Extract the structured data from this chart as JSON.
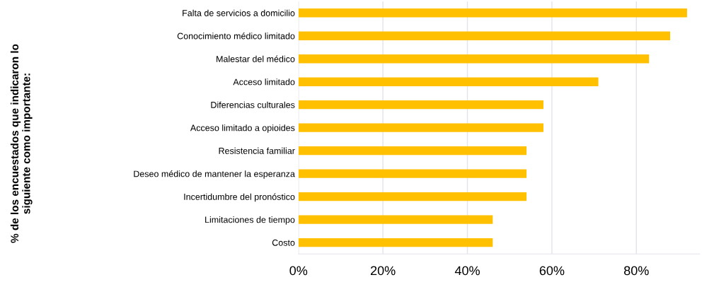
{
  "chart_data": {
    "type": "bar",
    "orientation": "horizontal",
    "annotations": [
      "% de los encuestados que indicaron lo\nsiguiente como importante:"
    ],
    "categories": [
      "Falta de servicios a domicilio",
      "Conocimiento médico limitado",
      "Malestar del médico",
      "Acceso limitado",
      "Diferencias culturales",
      "Acceso limitado a opioides",
      "Resistencia familiar",
      "Deseo médico de mantener la esperanza",
      "Incertidumbre del pronóstico",
      "Limitaciones de tiempo",
      "Costo"
    ],
    "values": [
      92,
      88,
      83,
      71,
      58,
      58,
      54,
      54,
      54,
      46,
      46
    ],
    "color": "#ffc000",
    "xlim": [
      0,
      95
    ],
    "xticks": [
      {
        "value": 0,
        "label": "0%"
      },
      {
        "value": 20,
        "label": "20%"
      },
      {
        "value": 40,
        "label": "40%"
      },
      {
        "value": 60,
        "label": "60%"
      },
      {
        "value": 80,
        "label": "80%"
      }
    ],
    "grid": "x",
    "legend": false
  }
}
